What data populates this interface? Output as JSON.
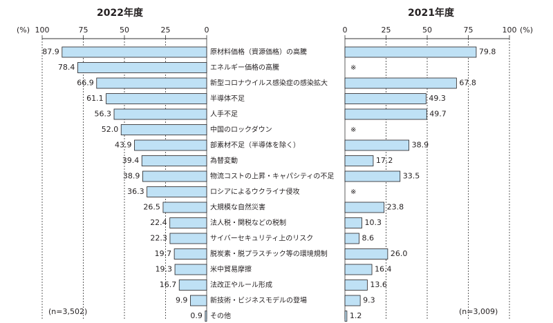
{
  "chart_data": [
    {
      "type": "bar",
      "orientation": "horizontal",
      "title": "2022年度",
      "axis_unit": "(%)",
      "axis_direction": "reversed",
      "xlim": [
        0,
        100
      ],
      "ticks": [
        "100",
        "75",
        "50",
        "25",
        "0"
      ],
      "tick_values": [
        100,
        75,
        50,
        25,
        0
      ],
      "grid": true,
      "bar_color": "#bfe1f5",
      "sample_note": "(n=3,502)",
      "categories": [
        "原材料価格（資源価格）の高騰",
        "エネルギー価格の高騰",
        "新型コロナウイルス感染症の感染拡大",
        "半導体不足",
        "人手不足",
        "中国のロックダウン",
        "部素材不足（半導体を除く）",
        "為替変動",
        "物流コストの上昇・キャパシティの不足",
        "ロシアによるウクライナ侵攻",
        "大規模な自然災害",
        "法人税・関税などの税制",
        "サイバーセキュリティ上のリスク",
        "脱炭素・脱プラスチック等の環境規制",
        "米中貿易摩擦",
        "法改正やルール形成",
        "新技術・ビジネスモデルの登場",
        "その他"
      ],
      "values": [
        87.9,
        78.4,
        66.9,
        61.1,
        56.3,
        52.0,
        43.9,
        39.4,
        38.9,
        36.3,
        26.5,
        22.4,
        22.3,
        19.7,
        19.3,
        16.7,
        9.9,
        0.9
      ],
      "labels": [
        "87.9",
        "78.4",
        "66.9",
        "61.1",
        "56.3",
        "52.0",
        "43.9",
        "39.4",
        "38.9",
        "36.3",
        "26.5",
        "22.4",
        "22.3",
        "19.7",
        "19.3",
        "16.7",
        "9.9",
        "0.9"
      ]
    },
    {
      "type": "bar",
      "orientation": "horizontal",
      "title": "2021年度",
      "axis_unit": "(%)",
      "xlim": [
        0,
        100
      ],
      "ticks": [
        "0",
        "25",
        "50",
        "75",
        "100"
      ],
      "tick_values": [
        0,
        25,
        50,
        75,
        100
      ],
      "grid": true,
      "bar_color": "#bfe1f5",
      "sample_note": "(n=3,009)",
      "not_surveyed_mark": "※",
      "categories": [
        "原材料価格（資源価格）の高騰",
        "エネルギー価格の高騰",
        "新型コロナウイルス感染症の感染拡大",
        "半導体不足",
        "人手不足",
        "中国のロックダウン",
        "部素材不足（半導体を除く）",
        "為替変動",
        "物流コストの上昇・キャパシティの不足",
        "ロシアによるウクライナ侵攻",
        "大規模な自然災害",
        "法人税・関税などの税制",
        "サイバーセキュリティ上のリスク",
        "脱炭素・脱プラスチック等の環境規制",
        "米中貿易摩擦",
        "法改正やルール形成",
        "新技術・ビジネスモデルの登場",
        "その他"
      ],
      "values": [
        79.8,
        null,
        67.8,
        49.3,
        49.7,
        null,
        38.9,
        17.2,
        33.5,
        null,
        23.8,
        10.3,
        8.6,
        26.0,
        16.4,
        13.6,
        9.3,
        1.2
      ],
      "labels": [
        "79.8",
        "※",
        "67.8",
        "49.3",
        "49.7",
        "※",
        "38.9",
        "17.2",
        "33.5",
        "※",
        "23.8",
        "10.3",
        "8.6",
        "26.0",
        "16.4",
        "13.6",
        "9.3",
        "1.2"
      ]
    }
  ]
}
